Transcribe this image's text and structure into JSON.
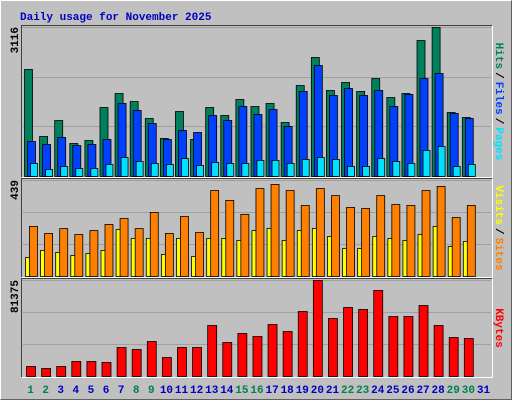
{
  "title": "Daily usage for November 2025",
  "separator": "/",
  "x_axis": {
    "categories": [
      "1",
      "2",
      "3",
      "4",
      "5",
      "6",
      "7",
      "8",
      "9",
      "10",
      "11",
      "12",
      "13",
      "14",
      "15",
      "16",
      "17",
      "18",
      "19",
      "20",
      "21",
      "22",
      "23",
      "24",
      "25",
      "26",
      "27",
      "28",
      "29",
      "30",
      "31"
    ],
    "label_colors": [
      "#00804c",
      "#00804c",
      "#0000c0",
      "#0000c0",
      "#0000c0",
      "#0000c0",
      "#0000c0",
      "#00804c",
      "#00804c",
      "#0000c0",
      "#0000c0",
      "#0000c0",
      "#0000c0",
      "#0000c0",
      "#00804c",
      "#00804c",
      "#0000c0",
      "#0000c0",
      "#0000c0",
      "#0000c0",
      "#0000c0",
      "#00804c",
      "#00804c",
      "#0000c0",
      "#0000c0",
      "#0000c0",
      "#0000c0",
      "#0000c0",
      "#00804c",
      "#00804c",
      "#0000c0"
    ]
  },
  "chart_data": [
    {
      "type": "bar",
      "ylim": [
        0,
        3116
      ],
      "yticks": [
        3116
      ],
      "series": [
        {
          "name": "Hits",
          "color": "#00805c",
          "values": [
            2238,
            837,
            1171,
            690,
            753,
            1443,
            1736,
            1568,
            1213,
            795,
            1359,
            774,
            1443,
            1276,
            1610,
            1464,
            1527,
            1129,
            1903,
            2489,
            1799,
            1966,
            1778,
            2049,
            1652,
            1736,
            2844,
            3116,
            1338,
            1234,
            null
          ]
        },
        {
          "name": "Files",
          "color": "#0040ff",
          "values": [
            732,
            669,
            816,
            648,
            669,
            774,
            1527,
            1380,
            1108,
            774,
            962,
            920,
            1276,
            1171,
            1464,
            1297,
            1401,
            1046,
            1778,
            2321,
            1694,
            1840,
            1694,
            1799,
            1464,
            1715,
            2049,
            2154,
            1318,
            1213,
            null
          ]
        },
        {
          "name": "Pages",
          "color": "#00e0ff",
          "values": [
            272,
            146,
            209,
            167,
            167,
            251,
            397,
            314,
            272,
            251,
            376,
            230,
            293,
            272,
            272,
            335,
            335,
            272,
            356,
            397,
            356,
            209,
            209,
            376,
            314,
            272,
            544,
            627,
            209,
            251,
            null
          ]
        }
      ]
    },
    {
      "type": "bar",
      "ylim": [
        0,
        439
      ],
      "yticks": [
        439
      ],
      "series": [
        {
          "name": "Visits",
          "color": "#ffff00",
          "values": [
            87,
            119,
            110,
            96,
            105,
            119,
            215,
            174,
            174,
            101,
            174,
            91,
            174,
            174,
            165,
            210,
            220,
            165,
            210,
            220,
            183,
            128,
            128,
            183,
            174,
            165,
            192,
            229,
            137,
            160,
            null
          ]
        },
        {
          "name": "Sites",
          "color": "#ff8000",
          "values": [
            229,
            197,
            219,
            192,
            210,
            238,
            265,
            219,
            293,
            197,
            274,
            201,
            393,
            348,
            284,
            402,
            421,
            393,
            325,
            402,
            370,
            316,
            311,
            370,
            329,
            325,
            393,
            412,
            270,
            325,
            null
          ]
        }
      ]
    },
    {
      "type": "bar",
      "ylim": [
        0,
        81375
      ],
      "yticks": [
        81375
      ],
      "series": [
        {
          "name": "KBytes",
          "color": "#ff0000",
          "values": [
            8477,
            6782,
            8477,
            12716,
            12716,
            11868,
            24583,
            22888,
            29670,
            16106,
            24583,
            24583,
            43233,
            28822,
            36451,
            33908,
            44080,
            38147,
            55101,
            81375,
            49167,
            58491,
            56796,
            72902,
            50862,
            50862,
            60187,
            43233,
            33060,
            32213,
            null
          ]
        }
      ]
    }
  ]
}
